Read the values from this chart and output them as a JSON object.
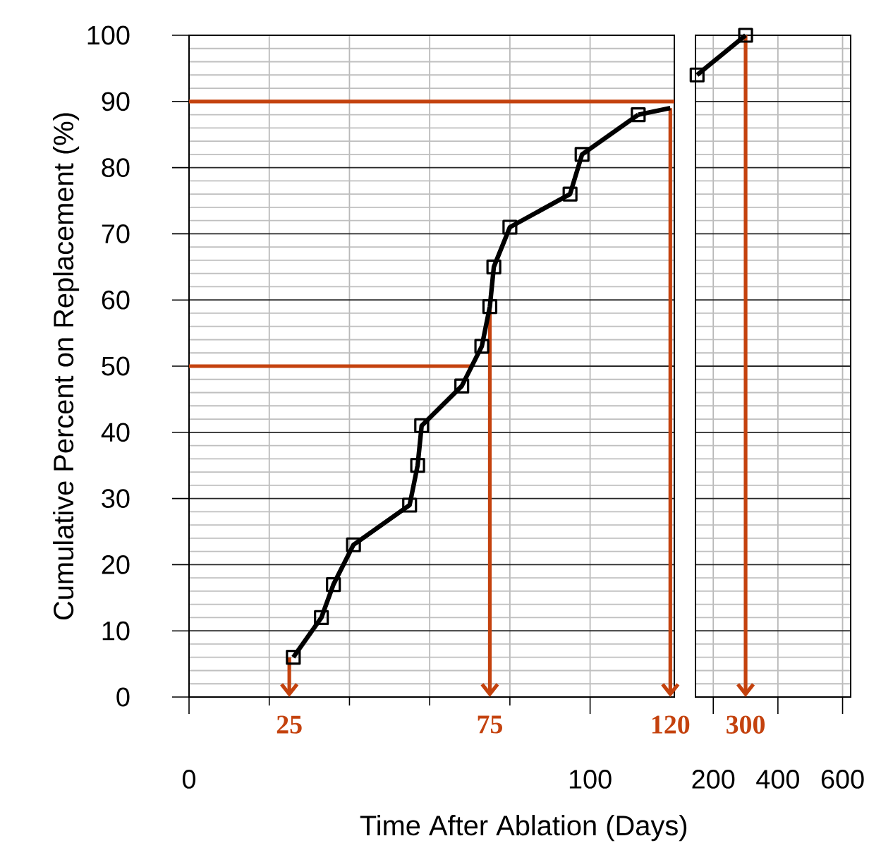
{
  "chart_data": [
    {
      "type": "line",
      "xlabel": "Time After Ablation (Days)",
      "ylabel": "Cumulative Percent on Replacement (%)",
      "xlim": [
        0,
        121
      ],
      "ylim": [
        0,
        100
      ],
      "xticks": [
        0,
        {
          "value": 20,
          "label": null
        },
        {
          "value": 40,
          "label": null
        },
        {
          "value": 60,
          "label": null
        },
        {
          "value": 80,
          "label": null
        },
        100
      ],
      "yticks": [
        0,
        {
          "value": 2,
          "label": null
        },
        {
          "value": 4,
          "label": null
        },
        {
          "value": 6,
          "label": null
        },
        {
          "value": 8,
          "label": null
        },
        10,
        {
          "value": 12,
          "label": null
        },
        {
          "value": 14,
          "label": null
        },
        {
          "value": 16,
          "label": null
        },
        {
          "value": 18,
          "label": null
        },
        20,
        {
          "value": 22,
          "label": null
        },
        {
          "value": 24,
          "label": null
        },
        {
          "value": 26,
          "label": null
        },
        {
          "value": 28,
          "label": null
        },
        30,
        {
          "value": 32,
          "label": null
        },
        {
          "value": 34,
          "label": null
        },
        {
          "value": 36,
          "label": null
        },
        {
          "value": 38,
          "label": null
        },
        40,
        {
          "value": 42,
          "label": null
        },
        {
          "value": 44,
          "label": null
        },
        {
          "value": 46,
          "label": null
        },
        {
          "value": 48,
          "label": null
        },
        50,
        {
          "value": 52,
          "label": null
        },
        {
          "value": 54,
          "label": null
        },
        {
          "value": 56,
          "label": null
        },
        {
          "value": 58,
          "label": null
        },
        60,
        {
          "value": 62,
          "label": null
        },
        {
          "value": 64,
          "label": null
        },
        {
          "value": 66,
          "label": null
        },
        {
          "value": 68,
          "label": null
        },
        70,
        {
          "value": 72,
          "label": null
        },
        {
          "value": 74,
          "label": null
        },
        {
          "value": 76,
          "label": null
        },
        {
          "value": 78,
          "label": null
        },
        80,
        {
          "value": 82,
          "label": null
        },
        {
          "value": 84,
          "label": null
        },
        {
          "value": 86,
          "label": null
        },
        {
          "value": 88,
          "label": null
        },
        90,
        {
          "value": 92,
          "label": null
        },
        {
          "value": 94,
          "label": null
        },
        {
          "value": 96,
          "label": null
        },
        {
          "value": 98,
          "label": null
        },
        100
      ],
      "grid": true,
      "marker": "square",
      "series": [
        {
          "color": "#000000",
          "x": [
            26,
            33,
            36,
            41,
            55,
            57,
            58,
            68,
            73,
            75,
            76,
            80,
            95,
            98,
            112
          ],
          "values": [
            6,
            12,
            17,
            23,
            29,
            35,
            41,
            47,
            53,
            59,
            65,
            71,
            76,
            82,
            88
          ]
        },
        {
          "color": "#000000",
          "marker": "none",
          "x": [
            112,
            120
          ],
          "values": [
            88,
            89
          ]
        }
      ],
      "ref_lines": [
        {
          "axis": "y",
          "value": 90,
          "color": "#c4420e"
        },
        {
          "axis": "y",
          "value": 50,
          "color": "#c4420e"
        },
        {
          "axis": "x",
          "value": 25,
          "label": "25",
          "color": "#c4420e"
        },
        {
          "axis": "x",
          "value": 75,
          "label": "75",
          "color": "#c4420e"
        },
        {
          "axis": "x",
          "value": 120,
          "label": "120",
          "color": "#c4420e"
        }
      ]
    },
    {
      "type": "line",
      "xlim": [
        145,
        625
      ],
      "ylim": [
        0,
        100
      ],
      "xticks": [
        200,
        400,
        600
      ],
      "yticks": [
        0,
        {
          "value": 2,
          "label": null
        },
        {
          "value": 4,
          "label": null
        },
        {
          "value": 6,
          "label": null
        },
        {
          "value": 8,
          "label": null
        },
        10,
        {
          "value": 12,
          "label": null
        },
        {
          "value": 14,
          "label": null
        },
        {
          "value": 16,
          "label": null
        },
        {
          "value": 18,
          "label": null
        },
        20,
        {
          "value": 22,
          "label": null
        },
        {
          "value": 24,
          "label": null
        },
        {
          "value": 26,
          "label": null
        },
        {
          "value": 28,
          "label": null
        },
        30,
        {
          "value": 32,
          "label": null
        },
        {
          "value": 34,
          "label": null
        },
        {
          "value": 36,
          "label": null
        },
        {
          "value": 38,
          "label": null
        },
        40,
        {
          "value": 42,
          "label": null
        },
        {
          "value": 44,
          "label": null
        },
        {
          "value": 46,
          "label": null
        },
        {
          "value": 48,
          "label": null
        },
        50,
        {
          "value": 52,
          "label": null
        },
        {
          "value": 54,
          "label": null
        },
        {
          "value": 56,
          "label": null
        },
        {
          "value": 58,
          "label": null
        },
        60,
        {
          "value": 62,
          "label": null
        },
        {
          "value": 64,
          "label": null
        },
        {
          "value": 66,
          "label": null
        },
        {
          "value": 68,
          "label": null
        },
        70,
        {
          "value": 72,
          "label": null
        },
        {
          "value": 74,
          "label": null
        },
        {
          "value": 76,
          "label": null
        },
        {
          "value": 78,
          "label": null
        },
        80,
        {
          "value": 82,
          "label": null
        },
        {
          "value": 84,
          "label": null
        },
        {
          "value": 86,
          "label": null
        },
        {
          "value": 88,
          "label": null
        },
        90,
        {
          "value": 92,
          "label": null
        },
        {
          "value": 94,
          "label": null
        },
        {
          "value": 96,
          "label": null
        },
        {
          "value": 98,
          "label": null
        },
        100
      ],
      "tick_labels": "x",
      "grid": true,
      "marker": "square",
      "series": [
        {
          "color": "#000000",
          "x": [
            150,
            300
          ],
          "values": [
            94,
            100
          ]
        }
      ],
      "ref_lines": [
        {
          "axis": "x",
          "value": 300,
          "label": "300",
          "color": "#c4420e"
        }
      ]
    }
  ]
}
